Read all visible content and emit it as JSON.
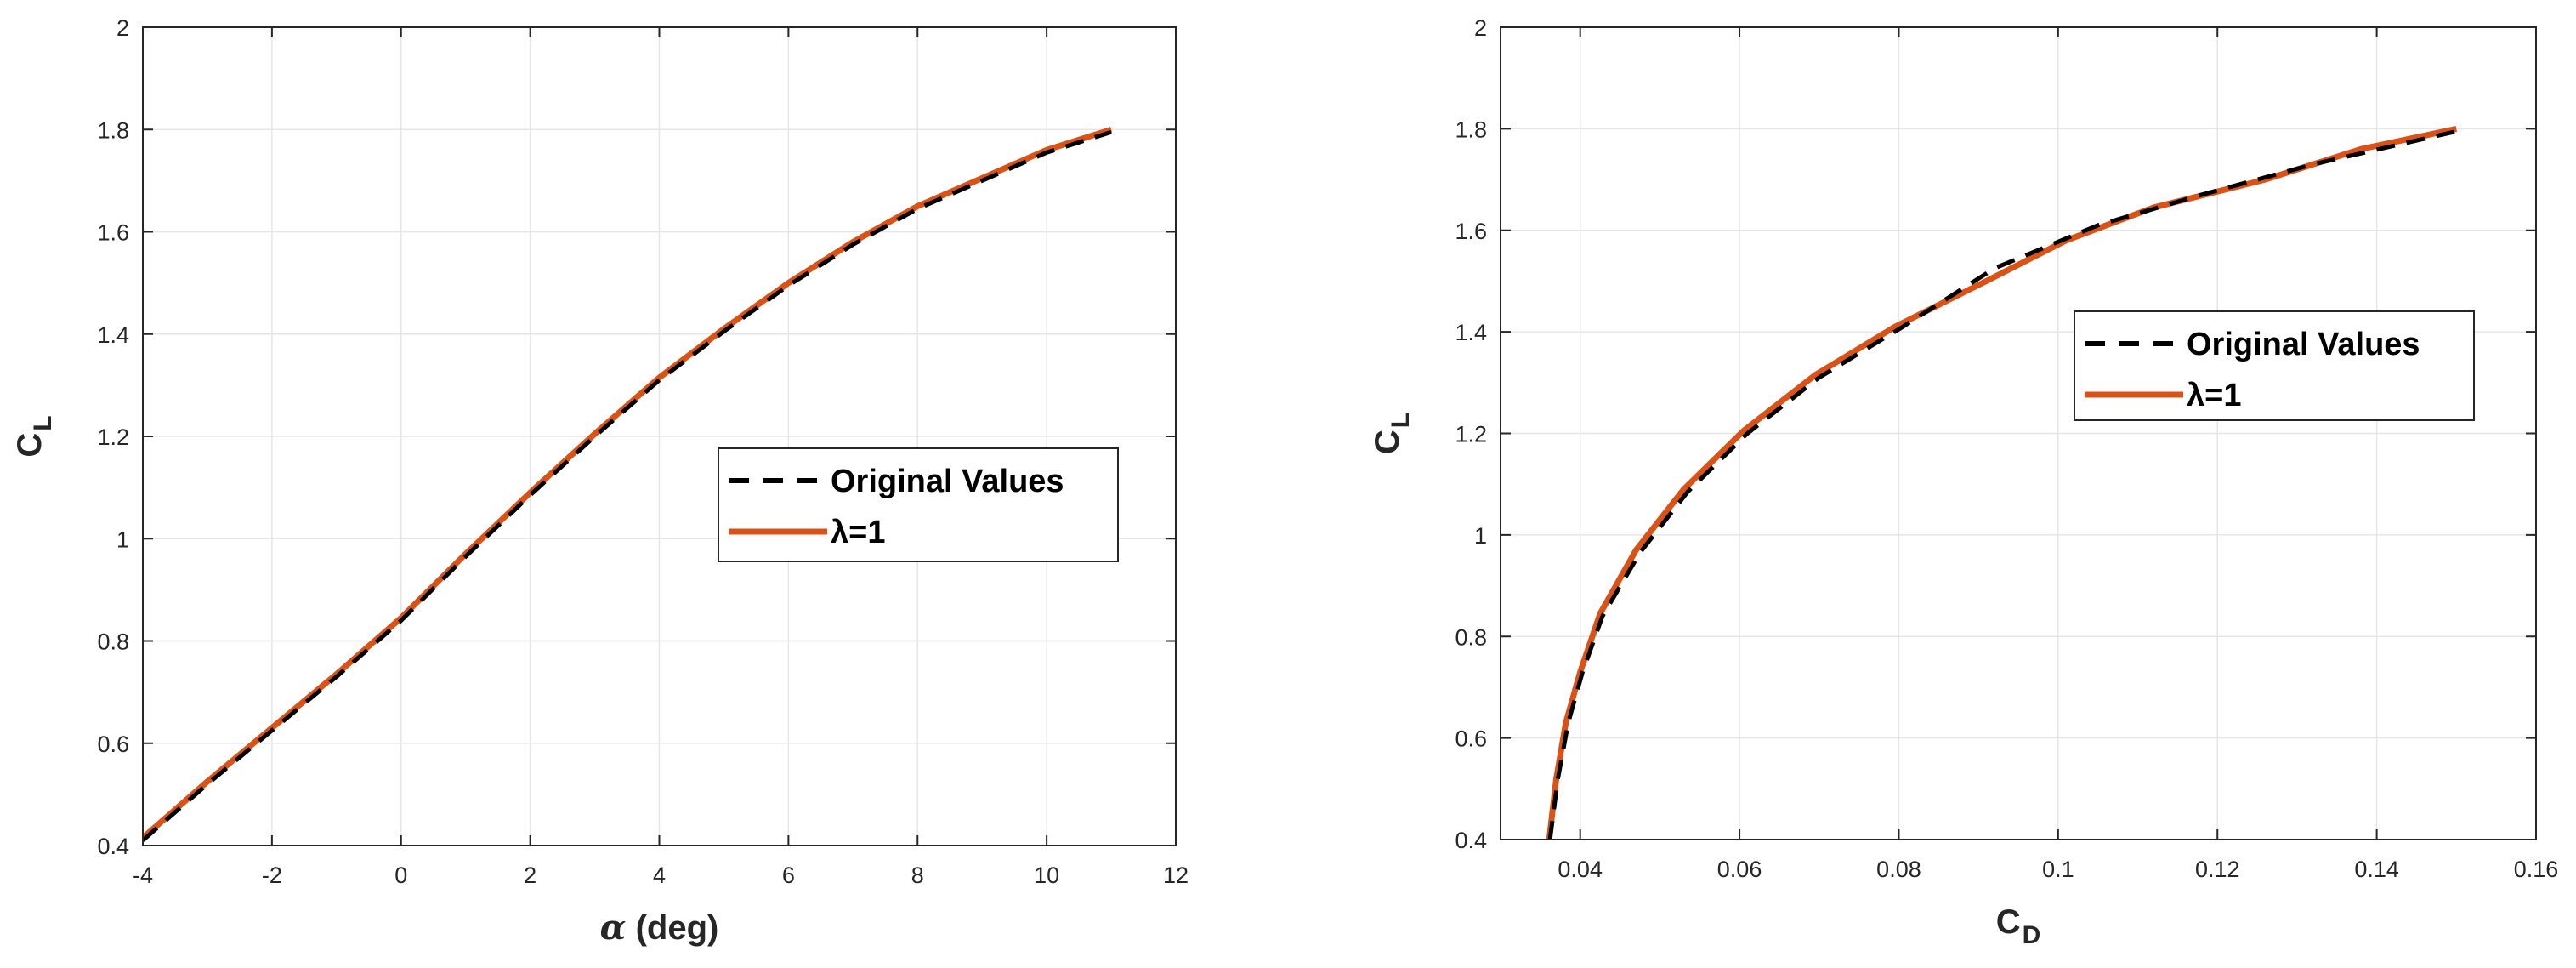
{
  "colors": {
    "original": "#000000",
    "fit": "#D95319",
    "grid": "#E6E6E6",
    "axis": "#262626"
  },
  "chart_data": [
    {
      "type": "line",
      "title": "",
      "xlabel": "α (deg)",
      "xlabel_parts": {
        "symbol": "α",
        "rest": " (deg)"
      },
      "ylabel": "C_L",
      "ylabel_parts": {
        "main": "C",
        "sub": "L"
      },
      "xlim": [
        -4,
        12
      ],
      "ylim": [
        0.4,
        2
      ],
      "xticks": [
        -4,
        -2,
        0,
        2,
        4,
        6,
        8,
        10,
        12
      ],
      "xtick_labels": [
        "-4",
        "-2",
        "0",
        "2",
        "4",
        "6",
        "8",
        "10",
        "12"
      ],
      "yticks": [
        0.4,
        0.6,
        0.8,
        1.0,
        1.2,
        1.4,
        1.6,
        1.8,
        2.0
      ],
      "ytick_labels": [
        "0.4",
        "0.6",
        "0.8",
        "1",
        "1.2",
        "1.4",
        "1.6",
        "1.8",
        "2"
      ],
      "grid": true,
      "legend_position": "center-right",
      "series": [
        {
          "name": "Original Values",
          "style": "dashed",
          "x": [
            -4,
            -3,
            -2,
            -1,
            0,
            1,
            2,
            3,
            4,
            5,
            6,
            7,
            8,
            9,
            10,
            11
          ],
          "y": [
            0.41,
            0.52,
            0.625,
            0.73,
            0.84,
            0.965,
            1.085,
            1.2,
            1.31,
            1.405,
            1.495,
            1.575,
            1.645,
            1.7,
            1.755,
            1.795
          ]
        },
        {
          "name": "λ=1",
          "style": "solid",
          "x": [
            -4,
            -3,
            -2,
            -1,
            0,
            1,
            2,
            3,
            4,
            5,
            6,
            7,
            8,
            9,
            10,
            11
          ],
          "y": [
            0.415,
            0.525,
            0.63,
            0.735,
            0.845,
            0.97,
            1.09,
            1.205,
            1.315,
            1.41,
            1.5,
            1.58,
            1.65,
            1.705,
            1.76,
            1.8
          ]
        }
      ]
    },
    {
      "type": "line",
      "title": "",
      "xlabel": "C_D",
      "xlabel_parts": {
        "main": "C",
        "sub": "D"
      },
      "ylabel": "C_L",
      "ylabel_parts": {
        "main": "C",
        "sub": "L"
      },
      "xlim": [
        0.03,
        0.16
      ],
      "ylim": [
        0.4,
        2
      ],
      "xticks": [
        0.04,
        0.06,
        0.08,
        0.1,
        0.12,
        0.14,
        0.16
      ],
      "xtick_labels": [
        "0.04",
        "0.06",
        "0.08",
        "0.1",
        "0.12",
        "0.14",
        "0.16"
      ],
      "yticks": [
        0.4,
        0.6,
        0.8,
        1.0,
        1.2,
        1.4,
        1.6,
        1.8,
        2.0
      ],
      "ytick_labels": [
        "0.4",
        "0.6",
        "0.8",
        "1",
        "1.2",
        "1.4",
        "1.6",
        "1.8",
        "2"
      ],
      "grid": true,
      "legend_position": "center-right",
      "series": [
        {
          "name": "Original Values",
          "style": "dashed",
          "x": [
            0.0362,
            0.0372,
            0.0385,
            0.0403,
            0.0428,
            0.0475,
            0.0535,
            0.061,
            0.07,
            0.08,
            0.092,
            0.105,
            0.118,
            0.132,
            0.15
          ],
          "y": [
            0.4,
            0.52,
            0.63,
            0.73,
            0.84,
            0.965,
            1.085,
            1.2,
            1.31,
            1.405,
            1.525,
            1.61,
            1.67,
            1.73,
            1.795
          ]
        },
        {
          "name": "λ=1",
          "style": "solid",
          "x": [
            0.0361,
            0.037,
            0.0382,
            0.04,
            0.0425,
            0.047,
            0.053,
            0.0605,
            0.0695,
            0.0795,
            0.091,
            0.101,
            0.112,
            0.126,
            0.138,
            0.15
          ],
          "y": [
            0.4,
            0.52,
            0.63,
            0.73,
            0.845,
            0.97,
            1.09,
            1.205,
            1.315,
            1.41,
            1.5,
            1.58,
            1.645,
            1.7,
            1.76,
            1.8
          ]
        }
      ]
    }
  ]
}
